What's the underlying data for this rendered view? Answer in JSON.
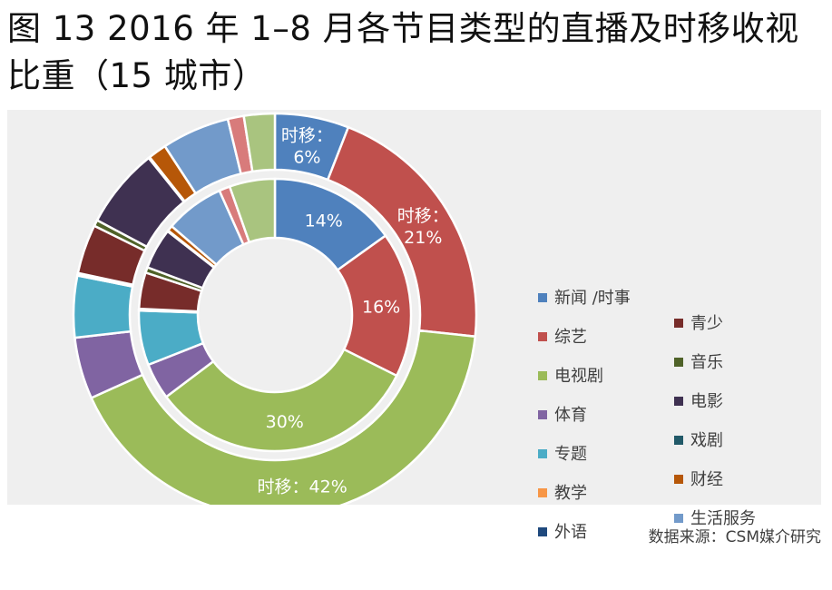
{
  "title": {
    "line1": "图 13 2016 年 1–8 月各节目类型的直播及时移收视",
    "line2": "比重（15 城市）"
  },
  "source": "数据来源：CSM媒介研究",
  "chart_data": {
    "type": "donut",
    "categories": [
      "新闻 /时事",
      "综艺",
      "电视剧",
      "体育",
      "专题",
      "教学",
      "外语",
      "青少",
      "音乐",
      "电影",
      "戏剧",
      "财经",
      "生活服务"
    ],
    "colors": [
      "#4f81bd",
      "#c0504d",
      "#9bbb59",
      "#8064a2",
      "#4bacc6",
      "#f79646",
      "#1f497d",
      "#772c2a",
      "#4f6228",
      "#3f3151",
      "#215968",
      "#b65708",
      "#729aca"
    ],
    "series": [
      {
        "name": "直播",
        "ring": "inner",
        "values": [
          14,
          16,
          30,
          4,
          6,
          0.1,
          0.1,
          4,
          0.6,
          4.5,
          0.1,
          0.6,
          6.5
        ],
        "labels": [
          "14%",
          "16%",
          "30%",
          "",
          "",
          "",
          "",
          "",
          "",
          "",
          "",
          "",
          ""
        ]
      },
      {
        "name": "时移",
        "ring": "outer",
        "values": [
          6,
          21,
          42,
          5,
          5,
          0.1,
          0.1,
          4,
          0.5,
          6.5,
          0.1,
          1.5,
          5.5
        ],
        "labels": [
          "时移：6%",
          "时移：21%",
          "时移：42%",
          "",
          "",
          "",
          "",
          "",
          "",
          "",
          "",
          "",
          ""
        ]
      }
    ],
    "extra_slices": {
      "inner_after": [
        {
          "color": "#d87b7b",
          "value": 1.2
        },
        {
          "color": "#a9c47f",
          "value": 5.0
        }
      ],
      "outer_after": [
        {
          "color": "#d87b7b",
          "value": 1.3
        },
        {
          "color": "#a9c47f",
          "value": 2.5
        }
      ]
    },
    "legend": {
      "position": "right",
      "columns": [
        [
          "新闻 /时事",
          "综艺",
          "电视剧",
          "体育",
          "专题",
          "教学",
          "外语"
        ],
        [
          "青少",
          "音乐",
          "电影",
          "戏剧",
          "财经",
          "生活服务"
        ]
      ]
    }
  }
}
